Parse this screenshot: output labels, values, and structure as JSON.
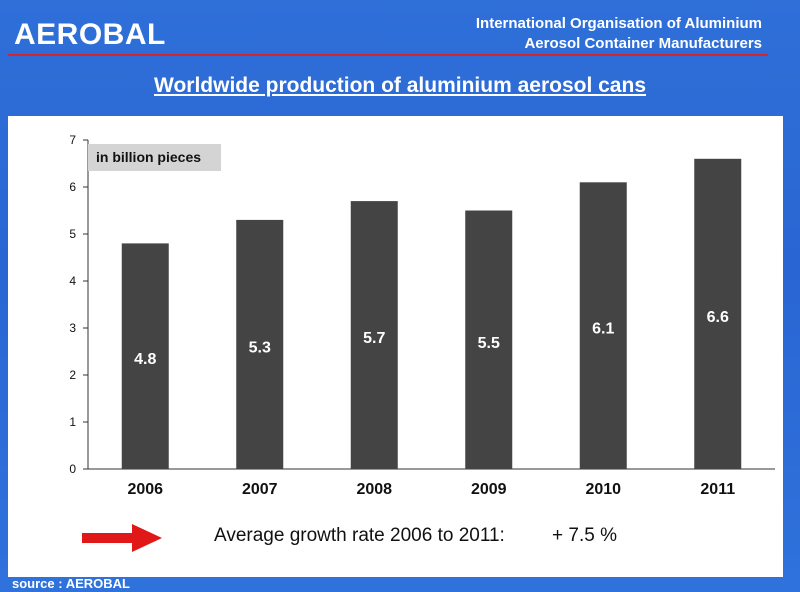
{
  "header": {
    "brand": "AEROBAL",
    "org_line1": "International Organisation of Aluminium",
    "org_line2": "Aerosol Container Manufacturers",
    "title": "Worldwide production of aluminium aerosol cans"
  },
  "chart_data": {
    "type": "bar",
    "title": "Worldwide production of aluminium aerosol cans",
    "unit_note": "in billion pieces",
    "categories": [
      "2006",
      "2007",
      "2008",
      "2009",
      "2010",
      "2011"
    ],
    "values": [
      4.8,
      5.3,
      5.7,
      5.5,
      6.1,
      6.6
    ],
    "data_labels": [
      "4.8",
      "5.3",
      "5.7",
      "5.5",
      "6.1",
      "6.6"
    ],
    "ylim": [
      0,
      7
    ],
    "yticks": [
      0,
      1,
      2,
      3,
      4,
      5,
      6,
      7
    ],
    "xlabel": "",
    "ylabel": "",
    "bar_color": "#444444"
  },
  "footer": {
    "growth_label": "Average growth rate 2006 to 2011:",
    "growth_value": "+ 7.5 %",
    "source": "source : AEROBAL"
  },
  "colors": {
    "background": "#2a66d3",
    "accent_red": "#d9232a",
    "arrow_red": "#e01818",
    "note_bg": "#d4d4d4"
  }
}
